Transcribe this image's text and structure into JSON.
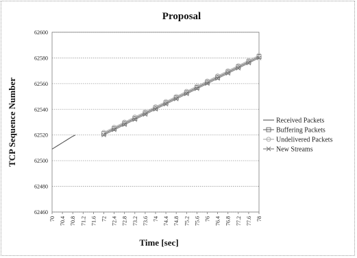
{
  "chart_data": {
    "type": "line",
    "title": "Proposal",
    "xlabel": "Time [sec]",
    "ylabel": "TCP Sequence Number",
    "xlim": [
      70,
      78
    ],
    "ylim": [
      62460,
      62600
    ],
    "x_ticks": [
      "70",
      "70.4",
      "70.8",
      "71.2",
      "71.6",
      "72",
      "72.4",
      "72.8",
      "73.2",
      "73.6",
      "74",
      "74.4",
      "74.8",
      "75.2",
      "75.6",
      "76",
      "76.4",
      "76.8",
      "77.2",
      "77.6",
      "78"
    ],
    "y_ticks": [
      "62600",
      "62580",
      "62560",
      "62540",
      "62520",
      "62500",
      "62480",
      "62460"
    ],
    "grid": true,
    "legend_position": "right",
    "series": [
      {
        "name": "Received Packets",
        "color": "#555555",
        "marker": "line",
        "x": [
          70,
          70.2,
          70.4,
          70.6,
          70.8,
          70.9
        ],
        "y": [
          62509,
          62511.5,
          62514,
          62516.5,
          62519,
          62520
        ]
      },
      {
        "name": "Buffering Packets",
        "color": "#666666",
        "marker": "square",
        "x": [
          72,
          72.4,
          72.8,
          73.2,
          73.6,
          74,
          74.4,
          74.8,
          75.2,
          75.6,
          76,
          76.4,
          76.8,
          77.2,
          77.6,
          78
        ],
        "y": [
          62521,
          62525,
          62529,
          62533,
          62537,
          62541,
          62545,
          62549,
          62553,
          62557,
          62561,
          62565,
          62569,
          62573,
          62577,
          62581
        ]
      },
      {
        "name": "Undelivered Packets",
        "color": "#aaaaaa",
        "marker": "circle",
        "x": [
          72,
          72.4,
          72.8,
          73.2,
          73.6,
          74,
          74.4,
          74.8,
          75.2,
          75.6,
          76,
          76.4,
          76.8,
          77.2,
          77.6,
          78
        ],
        "y": [
          62522,
          62526,
          62530,
          62534,
          62538,
          62542,
          62546,
          62550,
          62554,
          62558,
          62562,
          62566,
          62570,
          62574,
          62578,
          62582
        ]
      },
      {
        "name": "New Streams",
        "color": "#777777",
        "marker": "x",
        "x": [
          72,
          72.4,
          72.8,
          73.2,
          73.6,
          74,
          74.4,
          74.8,
          75.2,
          75.6,
          76,
          76.4,
          76.8,
          77.2,
          77.6,
          78
        ],
        "y": [
          62520,
          62524,
          62528,
          62532,
          62536,
          62540,
          62544,
          62548,
          62552,
          62556,
          62560,
          62564,
          62568,
          62572,
          62576,
          62580
        ]
      }
    ]
  }
}
